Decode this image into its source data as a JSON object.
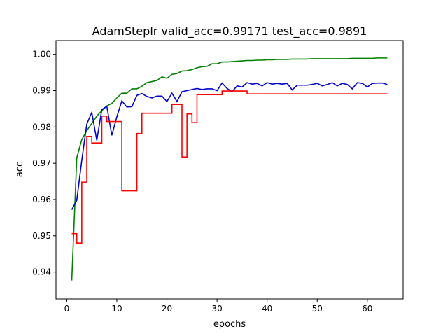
{
  "chart_data": {
    "type": "line",
    "title": "AdamSteplr valid_acc=0.99171  test_acc=0.9891",
    "xlabel": "epochs",
    "ylabel": "acc",
    "xlim": [
      -2.15,
      67.15
    ],
    "ylim": [
      0.9326,
      1.0038
    ],
    "xticks": [
      0,
      10,
      20,
      30,
      40,
      50,
      60
    ],
    "yticks": [
      0.94,
      0.95,
      0.96,
      0.97,
      0.98,
      0.99,
      1.0
    ],
    "ytick_labels": [
      "0.94",
      "0.95",
      "0.96",
      "0.97",
      "0.98",
      "0.99",
      "1.00"
    ],
    "grid": false,
    "series": [
      {
        "color": "#008000",
        "step": false,
        "x": [
          1,
          2,
          3,
          4,
          5,
          6,
          7,
          8,
          9,
          10,
          11,
          12,
          13,
          14,
          15,
          16,
          17,
          18,
          19,
          20,
          21,
          22,
          23,
          24,
          25,
          26,
          27,
          28,
          29,
          30,
          31,
          32,
          33,
          34,
          35,
          36,
          37,
          38,
          39,
          40,
          41,
          42,
          43,
          44,
          45,
          46,
          47,
          48,
          49,
          50,
          51,
          52,
          53,
          54,
          55,
          56,
          57,
          58,
          59,
          60,
          61,
          62,
          63,
          64
        ],
        "y": [
          0.9377,
          0.9715,
          0.9765,
          0.979,
          0.981,
          0.983,
          0.9845,
          0.9858,
          0.9865,
          0.988,
          0.9893,
          0.9893,
          0.9905,
          0.9905,
          0.9912,
          0.9922,
          0.9925,
          0.9928,
          0.9938,
          0.9934,
          0.9945,
          0.9947,
          0.9954,
          0.9955,
          0.9958,
          0.9963,
          0.9966,
          0.9967,
          0.9974,
          0.9974,
          0.9979,
          0.9979,
          0.998,
          0.9981,
          0.9982,
          0.9983,
          0.9983,
          0.9984,
          0.9984,
          0.9985,
          0.9985,
          0.9986,
          0.9986,
          0.9986,
          0.9987,
          0.9987,
          0.9987,
          0.9987,
          0.9988,
          0.9988,
          0.9988,
          0.9988,
          0.9988,
          0.9988,
          0.9988,
          0.9988,
          0.9989,
          0.9989,
          0.9989,
          0.9989,
          0.9989,
          0.999,
          0.999,
          0.999
        ]
      },
      {
        "color": "#0000cc",
        "step": false,
        "x": [
          1,
          2,
          3,
          4,
          5,
          6,
          7,
          8,
          9,
          10,
          11,
          12,
          13,
          14,
          15,
          16,
          17,
          18,
          19,
          20,
          21,
          22,
          23,
          24,
          25,
          26,
          27,
          28,
          29,
          30,
          31,
          32,
          33,
          34,
          35,
          36,
          37,
          38,
          39,
          40,
          41,
          42,
          43,
          44,
          45,
          46,
          47,
          48,
          49,
          50,
          51,
          52,
          53,
          54,
          55,
          56,
          57,
          58,
          59,
          60,
          61,
          62,
          63,
          64
        ],
        "y": [
          0.9572,
          0.9598,
          0.9708,
          0.9808,
          0.984,
          0.9763,
          0.9848,
          0.9857,
          0.9777,
          0.9828,
          0.9872,
          0.9855,
          0.9856,
          0.9887,
          0.9892,
          0.9884,
          0.988,
          0.9885,
          0.9885,
          0.987,
          0.9893,
          0.987,
          0.9897,
          0.99,
          0.9903,
          0.9906,
          0.9903,
          0.9905,
          0.9905,
          0.99,
          0.9921,
          0.9906,
          0.9897,
          0.9913,
          0.991,
          0.9922,
          0.9918,
          0.992,
          0.9913,
          0.9922,
          0.9918,
          0.992,
          0.9918,
          0.992,
          0.9902,
          0.9915,
          0.9915,
          0.9915,
          0.9917,
          0.992,
          0.9913,
          0.9917,
          0.9922,
          0.9913,
          0.992,
          0.9917,
          0.9905,
          0.9922,
          0.992,
          0.991,
          0.992,
          0.9921,
          0.9921,
          0.9917
        ]
      },
      {
        "color": "#ff0000",
        "step": true,
        "x": [
          1,
          2,
          3,
          4,
          5,
          6,
          7,
          8,
          9,
          10,
          11,
          12,
          13,
          14,
          15,
          16,
          17,
          18,
          19,
          20,
          21,
          22,
          23,
          24,
          25,
          26,
          27,
          28,
          29,
          30,
          31,
          32,
          33,
          34,
          35,
          36,
          37,
          38,
          39,
          40,
          41,
          42,
          43,
          44,
          45,
          46,
          47,
          48,
          49,
          50,
          51,
          52,
          53,
          54,
          55,
          56,
          57,
          58,
          59,
          60,
          61,
          62,
          63,
          64
        ],
        "y": [
          0.9506,
          0.948,
          0.9648,
          0.9774,
          0.9756,
          0.9756,
          0.983,
          0.9815,
          0.9815,
          0.9815,
          0.9624,
          0.9624,
          0.9624,
          0.9782,
          0.9838,
          0.9838,
          0.9838,
          0.9838,
          0.9838,
          0.9838,
          0.9862,
          0.9862,
          0.9717,
          0.9836,
          0.9812,
          0.9889,
          0.9889,
          0.9889,
          0.9889,
          0.9889,
          0.9899,
          0.9899,
          0.9899,
          0.9899,
          0.9899,
          0.9891,
          0.9891,
          0.9891,
          0.9891,
          0.9891,
          0.9891,
          0.9891,
          0.9891,
          0.9891,
          0.9891,
          0.9891,
          0.9891,
          0.9891,
          0.9891,
          0.9891,
          0.9891,
          0.9891,
          0.9891,
          0.9891,
          0.9891,
          0.9891,
          0.9891,
          0.9891,
          0.9891,
          0.9891,
          0.9891,
          0.9891,
          0.9891,
          0.9891
        ]
      }
    ]
  }
}
